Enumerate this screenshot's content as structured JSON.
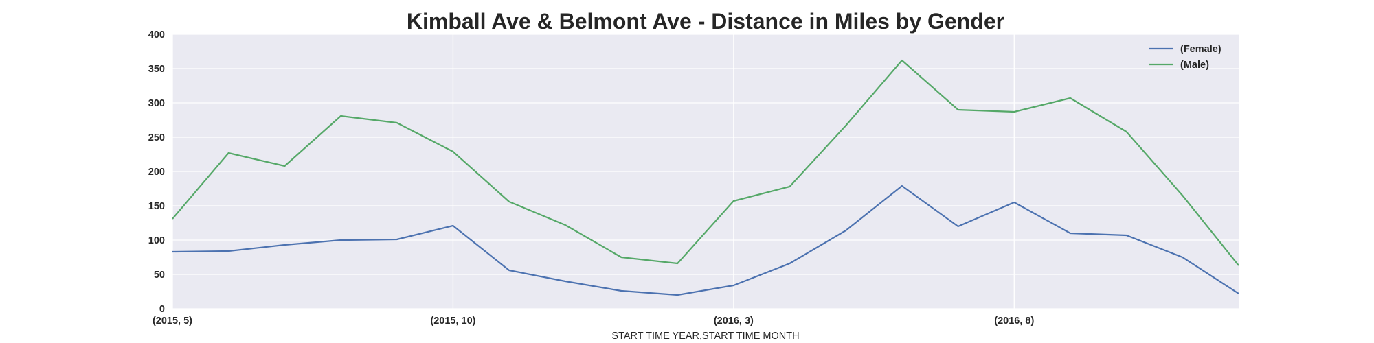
{
  "chart_data": {
    "type": "line",
    "title": "Kimball Ave & Belmont Ave - Distance in Miles by Gender",
    "xlabel": "START TIME YEAR,START TIME MONTH",
    "ylabel": "",
    "ylim": [
      0,
      400
    ],
    "yticks": [
      0,
      50,
      100,
      150,
      200,
      250,
      300,
      350,
      400
    ],
    "x": [
      "(2015, 5)",
      "(2015, 6)",
      "(2015, 7)",
      "(2015, 8)",
      "(2015, 9)",
      "(2015, 10)",
      "(2015, 11)",
      "(2015, 12)",
      "(2016, 1)",
      "(2016, 2)",
      "(2016, 3)",
      "(2016, 4)",
      "(2016, 5)",
      "(2016, 6)",
      "(2016, 7)",
      "(2016, 8)",
      "(2016, 9)",
      "(2016, 10)",
      "(2016, 11)",
      "(2016, 12)"
    ],
    "xticks": [
      "(2015, 5)",
      "(2015, 10)",
      "(2016, 3)",
      "(2016, 8)"
    ],
    "series": [
      {
        "name": "(Female)",
        "color": "#4c72b0",
        "values": [
          83,
          84,
          93,
          100,
          101,
          121,
          56,
          40,
          26,
          20,
          34,
          66,
          114,
          179,
          120,
          155,
          110,
          107,
          75,
          22
        ]
      },
      {
        "name": "(Male)",
        "color": "#55a868",
        "values": [
          131,
          227,
          208,
          281,
          271,
          229,
          156,
          122,
          75,
          66,
          157,
          178,
          267,
          362,
          290,
          287,
          307,
          258,
          165,
          63
        ]
      }
    ],
    "grid": true,
    "legend": "top-right",
    "background": "#eaeaf2",
    "gridcolor": "#ffffff"
  }
}
